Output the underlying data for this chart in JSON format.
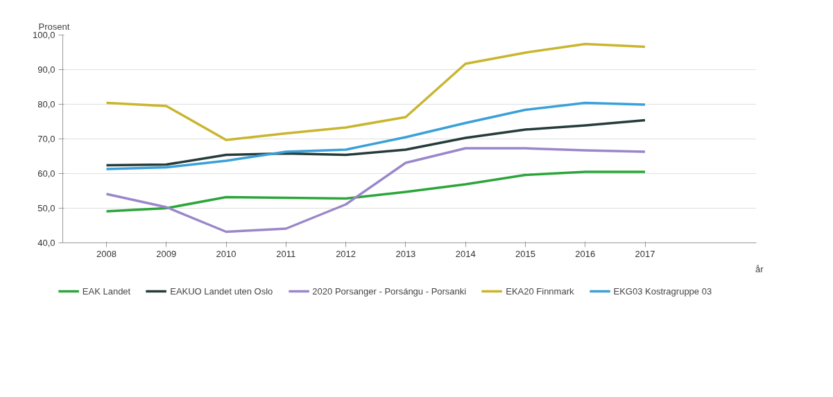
{
  "chart_data": {
    "type": "line",
    "xlabel": "år",
    "ylabel": "Prosent",
    "x": [
      2008,
      2009,
      2010,
      2011,
      2012,
      2013,
      2014,
      2015,
      2016,
      2017
    ],
    "xlim": [
      2007.27,
      2018.86
    ],
    "xticks": [
      2008,
      2009,
      2010,
      2011,
      2012,
      2013,
      2014,
      2015,
      2016,
      2017
    ],
    "ylim": [
      40,
      100
    ],
    "yticks": [
      {
        "value": 40,
        "label": "40,0"
      },
      {
        "value": 50,
        "label": "50,0"
      },
      {
        "value": 60,
        "label": "60,0"
      },
      {
        "value": 70,
        "label": "70,0"
      },
      {
        "value": 80,
        "label": "80,0"
      },
      {
        "value": 90,
        "label": "90,0"
      },
      {
        "value": 100,
        "label": "100,0"
      }
    ],
    "grid": "y",
    "legend": "bottom",
    "marker": "none",
    "line_style": "solid",
    "series": [
      {
        "name": "EAK Landet",
        "color": "#2ca53a",
        "values": [
          49.1,
          50.0,
          53.2,
          53.0,
          52.8,
          54.7,
          56.9,
          59.6,
          60.5,
          60.5
        ]
      },
      {
        "name": "EAKUO Landet uten Oslo",
        "color": "#253c3a",
        "values": [
          62.4,
          62.6,
          65.4,
          65.8,
          65.4,
          66.9,
          70.3,
          72.7,
          73.9,
          75.4
        ]
      },
      {
        "name": "2020 Porsanger - Porsángu - Porsanki",
        "color": "#9b86c9",
        "values": [
          54.1,
          50.3,
          43.2,
          44.1,
          51.1,
          63.1,
          67.3,
          67.3,
          66.7,
          66.3
        ]
      },
      {
        "name": "EKA20 Finnmark",
        "color": "#c9b52e",
        "values": [
          80.4,
          79.5,
          69.7,
          71.6,
          73.3,
          76.3,
          91.7,
          94.9,
          97.4,
          96.6
        ]
      },
      {
        "name": "EKG03 Kostragruppe 03",
        "color": "#3aa0d8",
        "values": [
          61.3,
          61.8,
          63.7,
          66.3,
          66.9,
          70.5,
          74.6,
          78.4,
          80.4,
          79.9
        ]
      }
    ]
  }
}
